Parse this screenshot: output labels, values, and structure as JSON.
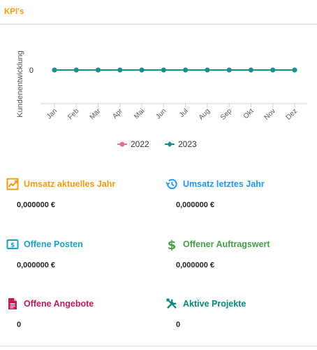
{
  "header": {
    "title": "KPI's"
  },
  "chart_data": {
    "type": "line",
    "ylabel": "Kundenentwicklung",
    "xlabel": "",
    "categories": [
      "Jan",
      "Feb",
      "Mär",
      "Apr",
      "Mai",
      "Jun",
      "Jul",
      "Aug",
      "Sep",
      "Okt",
      "Nov",
      "Dez"
    ],
    "y_ticks": [
      "0"
    ],
    "series": [
      {
        "name": "2022",
        "color": "#e8709a",
        "values": [
          0,
          0,
          0,
          0,
          0,
          0,
          0,
          0,
          0,
          0,
          0,
          0
        ]
      },
      {
        "name": "2023",
        "color": "#1a8f8a",
        "values": [
          0,
          0,
          0,
          0,
          0,
          0,
          0,
          0,
          0,
          0,
          0,
          0
        ]
      }
    ],
    "legend_position": "bottom-center"
  },
  "kpis": [
    {
      "title": "Umsatz aktuelles Jahr",
      "value": "0,000000 €",
      "color": "#f39c12",
      "icon": "trending-up-icon"
    },
    {
      "title": "Umsatz letztes Jahr",
      "value": "0,000000 €",
      "color": "#2196f3",
      "icon": "history-icon"
    },
    {
      "title": "Offene Posten",
      "value": "0,000000 €",
      "color": "#17a2c8",
      "icon": "money-icon"
    },
    {
      "title": "Offener Auftragswert",
      "value": "0,000000 €",
      "color": "#43a047",
      "icon": "dollar-icon"
    },
    {
      "title": "Offene Angebote",
      "value": "0",
      "color": "#c2185b",
      "icon": "document-icon"
    },
    {
      "title": "Aktive Projekte",
      "value": "0",
      "color": "#00897b",
      "icon": "tools-icon"
    }
  ]
}
